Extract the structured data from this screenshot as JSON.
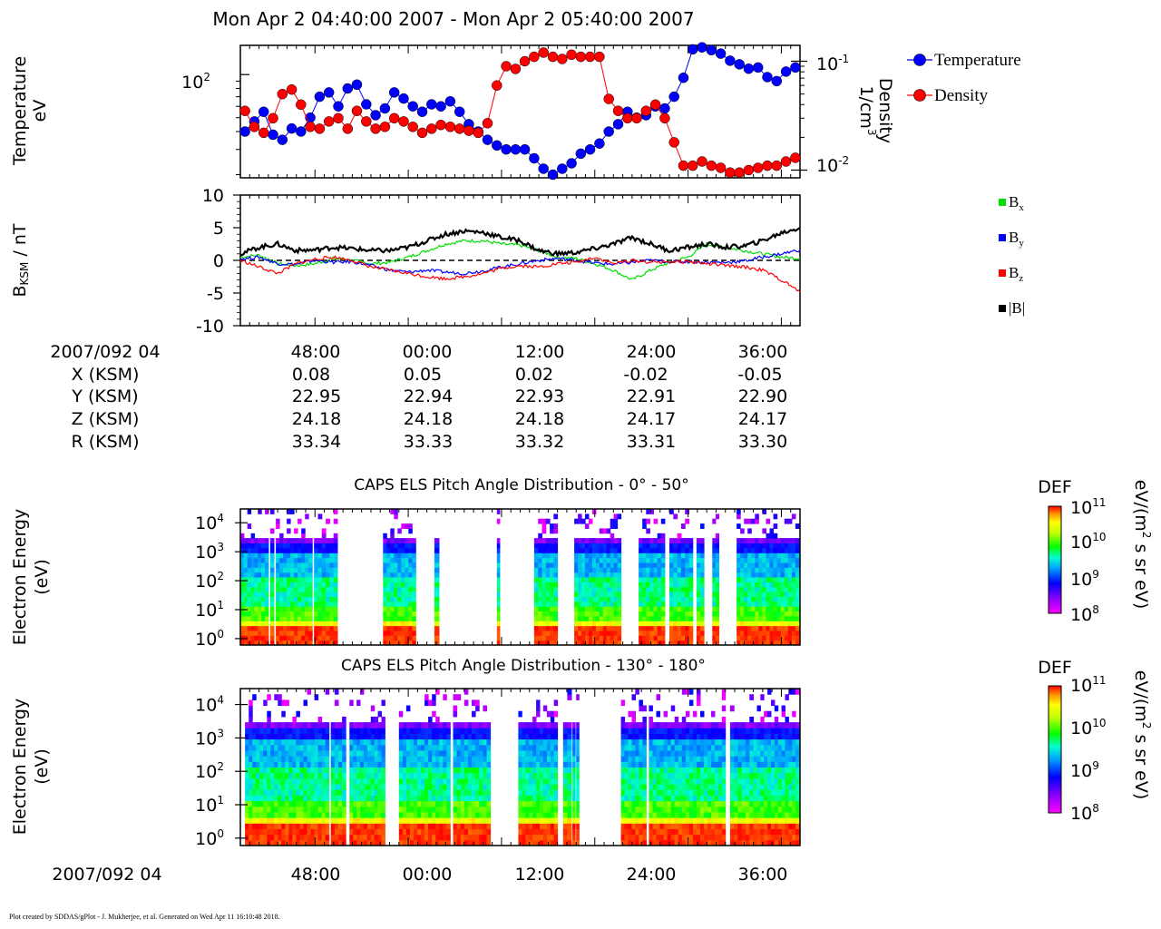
{
  "title": "Mon Apr 2 04:40:00 2007 - Mon Apr 2 05:40:00 2007",
  "footer": "Plot created by SDDAS/gPlot - J. Mukherjee, et al.  Generated on Wed Apr 11 16:10:48 2018.",
  "colors": {
    "temperature": "#0000ff",
    "density": "#ff0000",
    "bx": "#00dd00",
    "by": "#0000ff",
    "bz": "#ff0000",
    "bmag": "#000000"
  },
  "panel1": {
    "ylabel_line1": "Temperature",
    "ylabel_line2": "eV",
    "ytick_left": "10",
    "ytick_left_exp": "2",
    "ylabel_right_line1": "Density",
    "ylabel_right_line2": "1/cm",
    "ylabel_right_exp": "3",
    "ytick_right_top": "10",
    "ytick_right_top_exp": "-1",
    "ytick_right_bottom": "10",
    "ytick_right_bottom_exp": "-2",
    "legend": [
      "Temperature",
      "Density"
    ]
  },
  "panel2": {
    "ylabel_main": "B",
    "ylabel_sub": "KSM",
    "ylabel_rest": " / nT",
    "yticks": [
      "10",
      "5",
      "0",
      "-5",
      "-10"
    ],
    "legend": [
      {
        "main": "B",
        "sub": "x"
      },
      {
        "main": "B",
        "sub": "y"
      },
      {
        "main": "B",
        "sub": "z"
      },
      {
        "main": "|B|",
        "sub": ""
      }
    ]
  },
  "ephemeris": {
    "date_label": "2007/092 04",
    "times": [
      "48:00",
      "00:00",
      "12:00",
      "24:00",
      "36:00"
    ],
    "rows": [
      {
        "label": "X (KSM)",
        "values": [
          "0.08",
          "0.05",
          "0.02",
          "-0.02",
          "-0.05"
        ]
      },
      {
        "label": "Y (KSM)",
        "values": [
          "22.95",
          "22.94",
          "22.93",
          "22.91",
          "22.90"
        ]
      },
      {
        "label": "Z (KSM)",
        "values": [
          "24.18",
          "24.18",
          "24.18",
          "24.17",
          "24.17"
        ]
      },
      {
        "label": "R (KSM)",
        "values": [
          "33.34",
          "33.33",
          "33.32",
          "33.31",
          "33.30"
        ]
      }
    ]
  },
  "spectrogram1": {
    "title": "CAPS ELS Pitch Angle Distribution - 0° - 50°",
    "ylabel_line1": "Electron Energy",
    "ylabel_line2": "(eV)",
    "colorbar_title": "DEF",
    "colorbar_units_a": "eV/(m",
    "colorbar_units_exp": "2",
    "colorbar_units_b": " s sr eV)"
  },
  "spectrogram2": {
    "title": "CAPS ELS Pitch Angle Distribution - 130° - 180°",
    "ylabel_line1": "Electron Energy",
    "ylabel_line2": "(eV)",
    "colorbar_title": "DEF",
    "colorbar_units_a": "eV/(m",
    "colorbar_units_exp": "2",
    "colorbar_units_b": " s sr eV)"
  },
  "bottom_axis": {
    "date_label": "2007/092 04",
    "times": [
      "48:00",
      "00:00",
      "12:00",
      "24:00",
      "36:00"
    ]
  },
  "chart_data": [
    {
      "type": "scatter",
      "title": "",
      "xlabel": "",
      "ylabel": "Temperature eV",
      "y2label": "Density 1/cm3",
      "yscale": "log",
      "y2scale": "log",
      "xlim": [
        "04:40",
        "05:40"
      ],
      "ylim": [
        19,
        160
      ],
      "y2lim": [
        0.0085,
        0.14
      ],
      "minutes_after": "04:40",
      "series": [
        {
          "name": "Temperature",
          "axis": "left",
          "x": [
            0.5,
            1.5,
            2.5,
            3.5,
            4.5,
            5.5,
            6.5,
            7.5,
            8.5,
            9.5,
            10.5,
            11.5,
            12.5,
            13.5,
            14.5,
            15.5,
            16.5,
            17.5,
            18.5,
            19.5,
            20.5,
            21.5,
            22.5,
            23.5,
            24.5,
            25.5,
            26.5,
            27.5,
            28.5,
            29.5,
            30.5,
            31.5,
            32.5,
            33.5,
            34.5,
            35.5,
            36.5,
            37.5,
            38.5,
            39.5,
            40.5,
            41.5,
            42.5,
            43.5,
            44.5,
            45.5,
            46.5,
            47.5,
            48.5,
            49.5,
            50.5,
            51.5,
            52.5,
            53.5,
            54.5,
            55.5,
            56.5,
            57.5,
            58.5,
            59.5
          ],
          "y": [
            40,
            47,
            55,
            38,
            35,
            42,
            40,
            50,
            70,
            75,
            60,
            80,
            85,
            62,
            52,
            58,
            75,
            68,
            60,
            55,
            62,
            60,
            65,
            55,
            45,
            40,
            35,
            32,
            30,
            30,
            30,
            26,
            22,
            20,
            22,
            24,
            28,
            30,
            33,
            40,
            45,
            55,
            50,
            52,
            60,
            58,
            70,
            95,
            150,
            155,
            148,
            140,
            125,
            118,
            110,
            112,
            96,
            90,
            105,
            112
          ]
        },
        {
          "name": "Density",
          "axis": "right",
          "x": [
            0.5,
            1.5,
            2.5,
            3.5,
            4.5,
            5.5,
            6.5,
            7.5,
            8.5,
            9.5,
            10.5,
            11.5,
            12.5,
            13.5,
            14.5,
            15.5,
            16.5,
            17.5,
            18.5,
            19.5,
            20.5,
            21.5,
            22.5,
            23.5,
            24.5,
            25.5,
            26.5,
            27.5,
            28.5,
            29.5,
            30.5,
            31.5,
            32.5,
            33.5,
            34.5,
            35.5,
            36.5,
            37.5,
            38.5,
            39.5,
            40.5,
            41.5,
            42.5,
            43.5,
            44.5,
            45.5,
            46.5,
            47.5,
            48.5,
            49.5,
            50.5,
            51.5,
            52.5,
            53.5,
            54.5,
            55.5,
            56.5,
            57.5,
            58.5,
            59.5
          ],
          "y": [
            0.035,
            0.025,
            0.022,
            0.03,
            0.05,
            0.055,
            0.04,
            0.025,
            0.024,
            0.028,
            0.03,
            0.024,
            0.035,
            0.028,
            0.024,
            0.025,
            0.03,
            0.028,
            0.025,
            0.022,
            0.024,
            0.026,
            0.025,
            0.024,
            0.023,
            0.022,
            0.027,
            0.06,
            0.09,
            0.085,
            0.1,
            0.11,
            0.12,
            0.11,
            0.105,
            0.115,
            0.11,
            0.11,
            0.11,
            0.045,
            0.035,
            0.03,
            0.03,
            0.035,
            0.04,
            0.03,
            0.018,
            0.011,
            0.011,
            0.012,
            0.011,
            0.0105,
            0.0095,
            0.0095,
            0.01,
            0.0105,
            0.011,
            0.011,
            0.012,
            0.013
          ]
        }
      ]
    },
    {
      "type": "line",
      "title": "",
      "xlabel": "",
      "ylabel": "BKSM / nT",
      "xlim": [
        "04:40",
        "05:40"
      ],
      "ylim": [
        -10,
        10
      ],
      "grid": false,
      "minutes_after": "04:40",
      "x": [
        0,
        2,
        4,
        6,
        8,
        10,
        12,
        14,
        16,
        18,
        20,
        22,
        24,
        26,
        28,
        30,
        32,
        34,
        36,
        38,
        40,
        42,
        44,
        46,
        48,
        50,
        52,
        54,
        56,
        58,
        60
      ],
      "series": [
        {
          "name": "Bx",
          "values": [
            0.5,
            0.8,
            -0.5,
            -0.8,
            -0.5,
            0.3,
            0.0,
            -0.5,
            -0.3,
            0.5,
            1.5,
            2.5,
            3.0,
            3.0,
            2.5,
            2.3,
            1.5,
            0.5,
            0.3,
            -0.5,
            -1.5,
            -3.0,
            -1.5,
            -0.3,
            0.5,
            2.5,
            2.0,
            1.5,
            1.0,
            0.5,
            0.3
          ]
        },
        {
          "name": "By",
          "values": [
            0.2,
            0.5,
            -0.5,
            -0.6,
            0.0,
            -0.3,
            -0.2,
            -0.8,
            -1.5,
            -1.8,
            -1.5,
            -1.8,
            -2.0,
            -1.6,
            -1.0,
            -0.5,
            0.0,
            0.3,
            0.0,
            -0.4,
            -0.6,
            -0.3,
            0.0,
            -0.2,
            -0.2,
            -0.3,
            -0.3,
            -0.1,
            0.5,
            1.0,
            1.6
          ]
        },
        {
          "name": "Bz",
          "values": [
            0.0,
            -1.0,
            -2.0,
            -0.5,
            0.2,
            0.5,
            0.0,
            -1.0,
            -1.5,
            -2.0,
            -2.5,
            -2.8,
            -2.5,
            -2.0,
            -1.2,
            -0.8,
            -1.0,
            -0.5,
            -0.3,
            0.5,
            -0.5,
            0.0,
            -0.3,
            -0.2,
            -0.2,
            -0.5,
            -0.8,
            -1.0,
            -1.5,
            -3.0,
            -4.8
          ]
        },
        {
          "name": "|B|",
          "values": [
            1.0,
            2.0,
            2.5,
            1.5,
            1.6,
            2.0,
            1.8,
            1.5,
            1.5,
            2.0,
            3.0,
            4.0,
            4.5,
            4.3,
            3.5,
            3.0,
            1.5,
            1.0,
            1.2,
            1.8,
            2.5,
            3.5,
            2.5,
            1.5,
            2.0,
            2.5,
            2.0,
            2.2,
            3.0,
            4.2,
            5.0
          ]
        }
      ]
    },
    {
      "type": "heatmap",
      "title": "CAPS ELS Pitch Angle Distribution - 0° - 50°",
      "xlabel": "",
      "ylabel": "Electron Energy (eV)",
      "xlim": [
        "04:40",
        "05:40"
      ],
      "ylim": [
        0.6,
        30000
      ],
      "yscale": "log",
      "colorbar": {
        "label": "DEF eV/(m2 s sr eV)",
        "range": [
          100000000.0,
          100000000000.0
        ],
        "scale": "log"
      },
      "minutes_after": "04:40",
      "data_intervals": [
        [
          0,
          3
        ],
        [
          3.2,
          3.6
        ],
        [
          3.8,
          7.7
        ],
        [
          7.9,
          10.4
        ],
        [
          15.3,
          18.8
        ],
        [
          20.8,
          21.3
        ],
        [
          27.5,
          27.8
        ],
        [
          31.5,
          34
        ],
        [
          35.8,
          40.8
        ],
        [
          42.7,
          45.5
        ],
        [
          46,
          48.5
        ],
        [
          48.9,
          49.7
        ],
        [
          50.6,
          51.3
        ],
        [
          53.2,
          59.9
        ]
      ]
    },
    {
      "type": "heatmap",
      "title": "CAPS ELS Pitch Angle Distribution - 130° - 180°",
      "xlabel": "",
      "ylabel": "Electron Energy (eV)",
      "xlim": [
        "04:40",
        "05:40"
      ],
      "ylim": [
        0.6,
        30000
      ],
      "yscale": "log",
      "colorbar": {
        "label": "DEF eV/(m2 s sr eV)",
        "range": [
          100000000.0,
          100000000000.0
        ],
        "scale": "log"
      },
      "minutes_after": "04:40",
      "data_intervals": [
        [
          0.5,
          4.8
        ],
        [
          4.8,
          9.5
        ],
        [
          9.7,
          11.3
        ],
        [
          11.7,
          15.5
        ],
        [
          17,
          22.5
        ],
        [
          22.8,
          26.8
        ],
        [
          29.8,
          34
        ],
        [
          34.6,
          35.5
        ],
        [
          35.6,
          35.9
        ],
        [
          36,
          36.3
        ],
        [
          40.8,
          43.5
        ],
        [
          43.8,
          49.7
        ],
        [
          49.7,
          52
        ],
        [
          52.5,
          55
        ],
        [
          55,
          59.9
        ]
      ]
    }
  ]
}
